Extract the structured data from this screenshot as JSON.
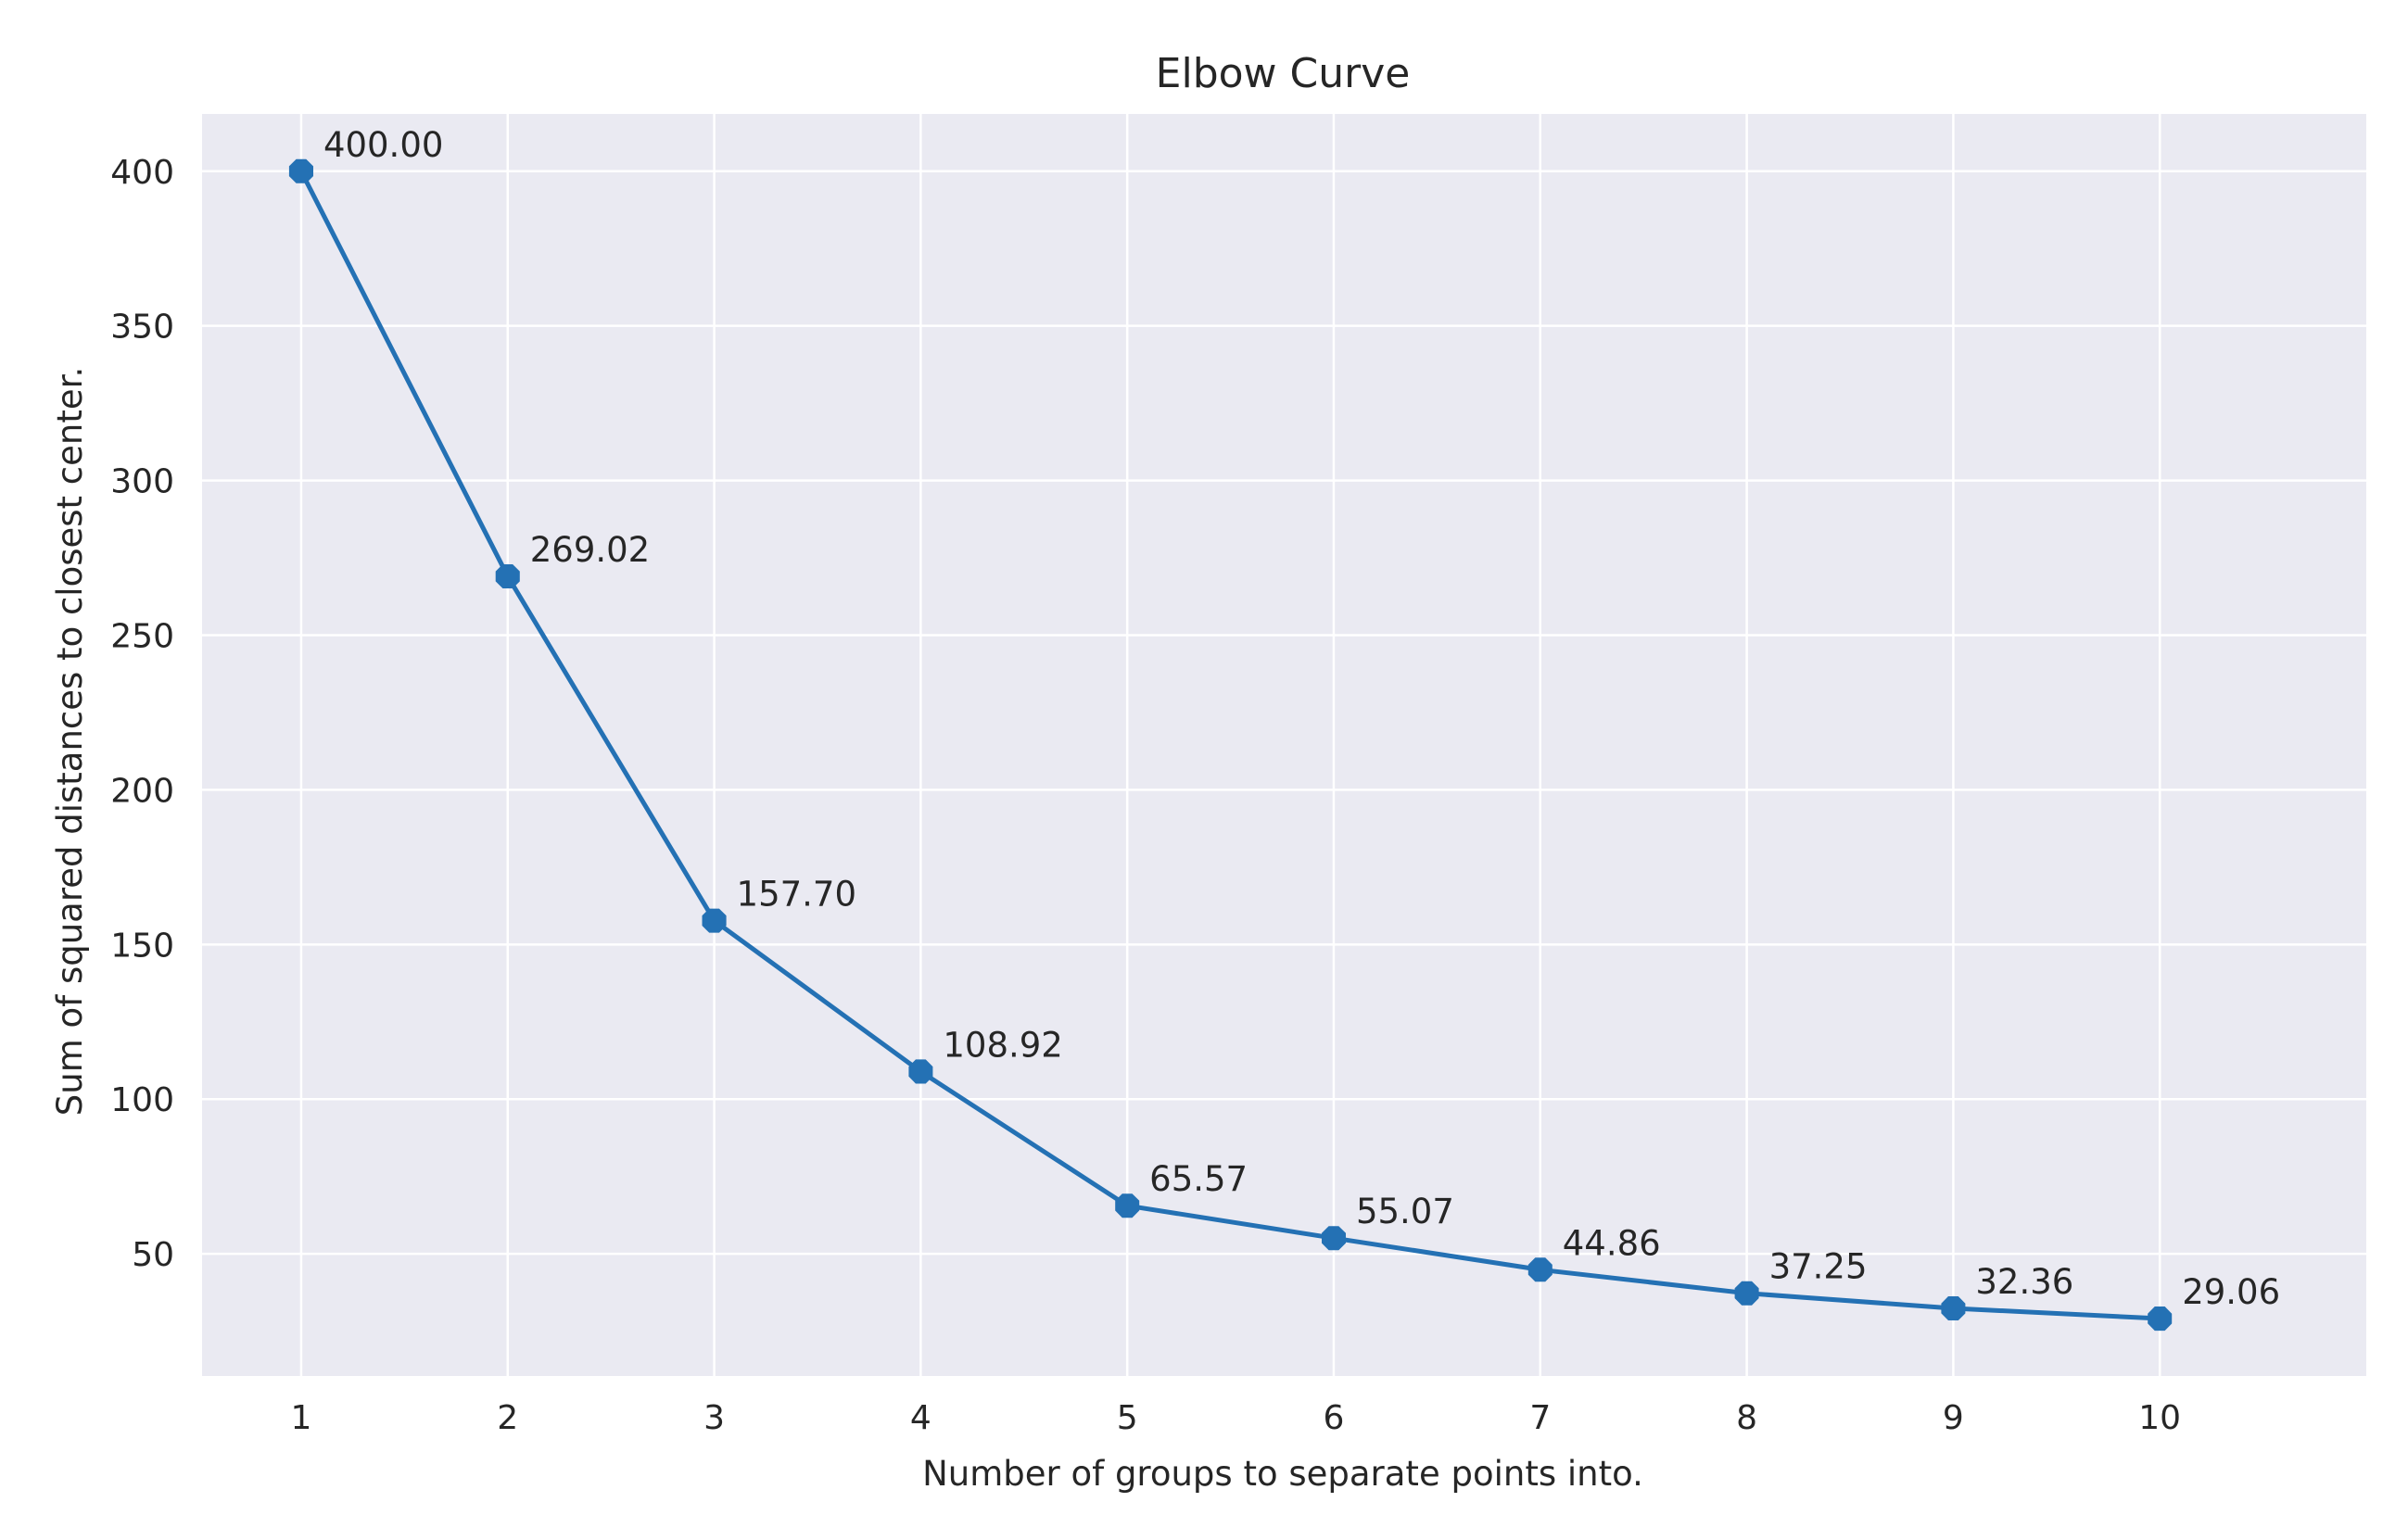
{
  "chart_data": {
    "type": "line",
    "title": "Elbow Curve",
    "xlabel": "Number of groups to separate points into.",
    "ylabel": "Sum of squared distances to closest center.",
    "x": [
      1,
      2,
      3,
      4,
      5,
      6,
      7,
      8,
      9,
      10
    ],
    "x_tick_labels": [
      "1",
      "2",
      "3",
      "4",
      "5",
      "6",
      "7",
      "8",
      "9",
      "10"
    ],
    "y_ticks": [
      50,
      100,
      150,
      200,
      250,
      300,
      350,
      400
    ],
    "y_tick_labels": [
      "50",
      "100",
      "150",
      "200",
      "250",
      "300",
      "350",
      "400"
    ],
    "series": [
      {
        "values": [
          400.0,
          269.02,
          157.7,
          108.92,
          65.57,
          55.07,
          44.86,
          37.25,
          32.36,
          29.06
        ],
        "data_labels": [
          "400.00",
          "269.02",
          "157.70",
          "108.92",
          "65.57",
          "55.07",
          "44.86",
          "37.25",
          "32.36",
          "29.06"
        ],
        "color": "#2471b4",
        "marker": "octagon"
      }
    ],
    "xlim": [
      0.52,
      11.0
    ],
    "ylim": [
      10.5,
      418.5
    ],
    "grid": true,
    "background": "#eaeaf2",
    "grid_color": "#ffffff"
  }
}
